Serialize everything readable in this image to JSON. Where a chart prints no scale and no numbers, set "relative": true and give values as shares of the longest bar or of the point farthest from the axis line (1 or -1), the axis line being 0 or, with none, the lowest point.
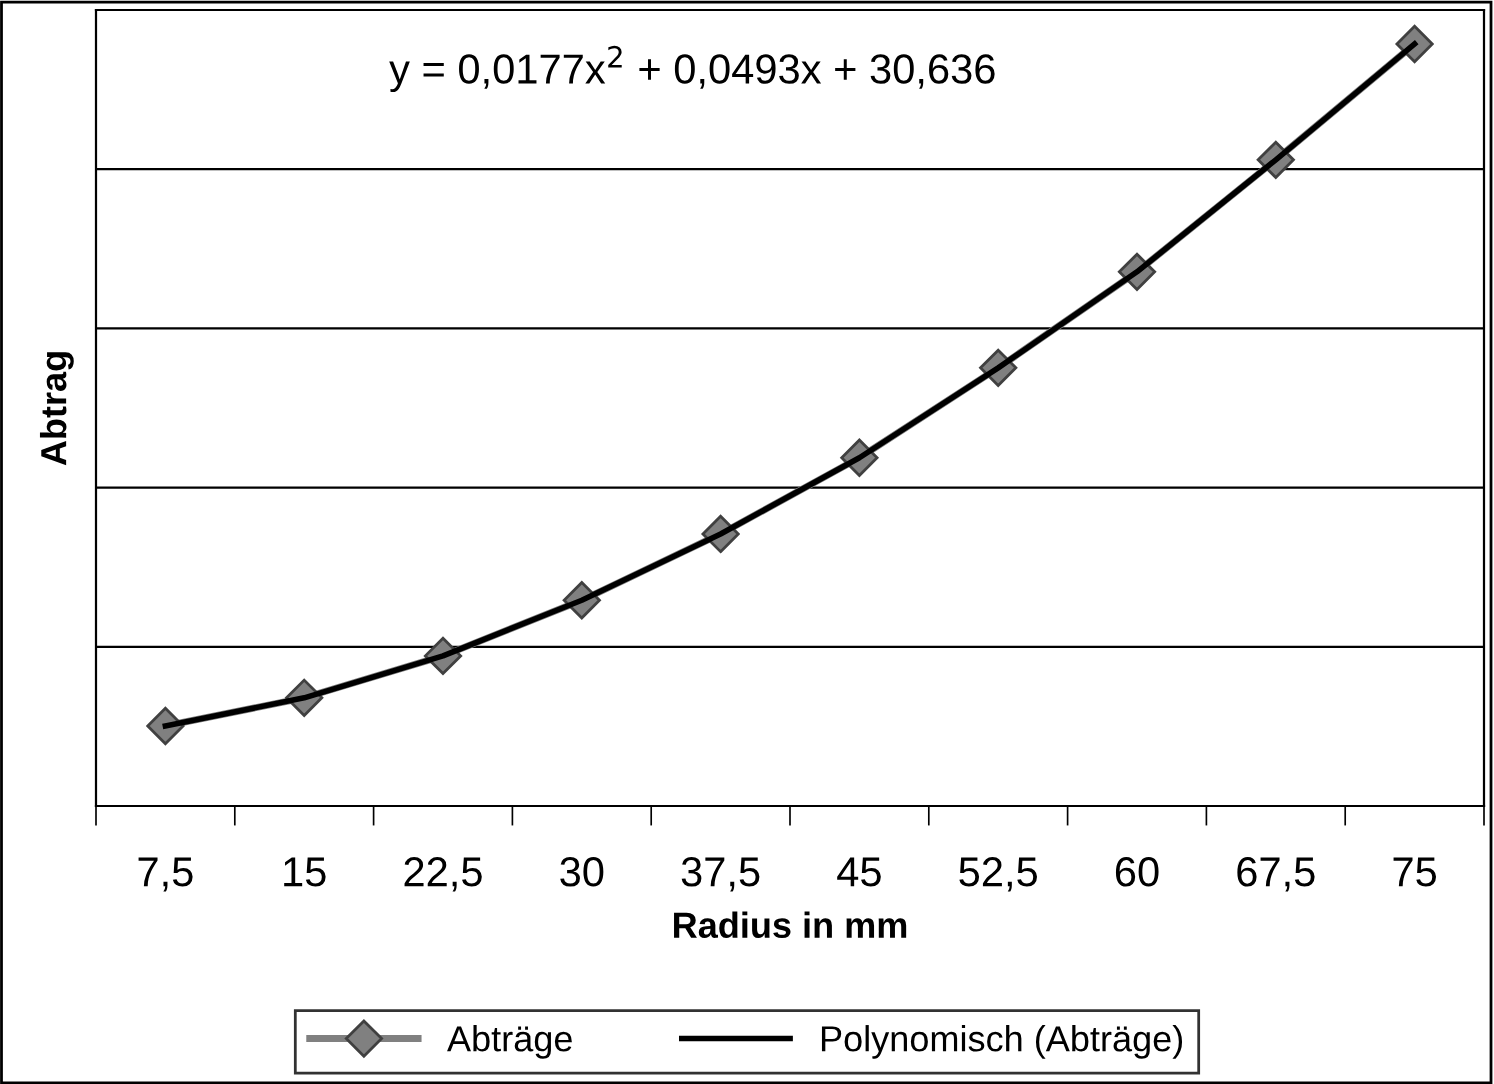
{
  "chart_data": {
    "type": "line",
    "relative": true,
    "xlabel": "Radius in mm",
    "ylabel": "Abtrag",
    "categories": [
      "7,5",
      "15",
      "22,5",
      "30",
      "37,5",
      "45",
      "52,5",
      "60",
      "67,5",
      "75"
    ],
    "series": [
      {
        "name": "Abträge",
        "color": "#808080",
        "marker": "diamond",
        "values": [
          0.105,
          0.142,
          0.197,
          0.27,
          0.357,
          0.457,
          0.575,
          0.701,
          0.848,
          1.0
        ]
      },
      {
        "name": "Polynomisch (Abträge)",
        "color": "#000000",
        "marker": "none",
        "values": [
          0.105,
          0.142,
          0.197,
          0.27,
          0.357,
          0.457,
          0.575,
          0.701,
          0.848,
          1.0
        ]
      }
    ],
    "annotations": [
      "y = 0,0177x$^{2}$ + 0,0493x + 30,636"
    ],
    "grid": "y",
    "legend": "bottom"
  }
}
